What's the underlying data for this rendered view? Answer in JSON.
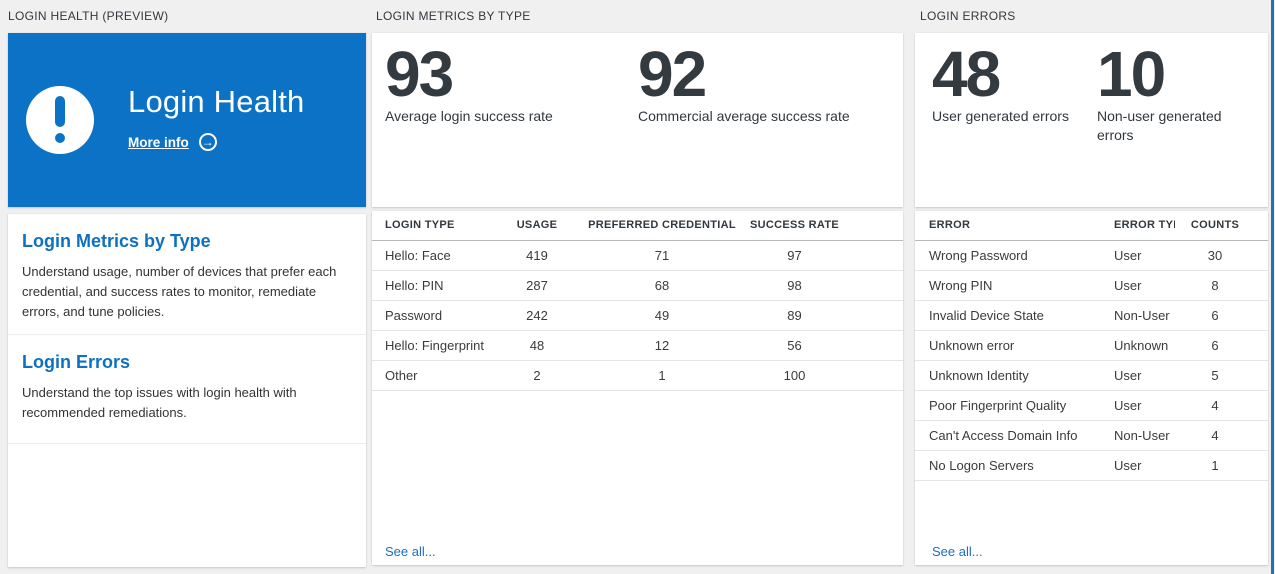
{
  "colors": {
    "card_blue": "#0c72c6",
    "heading_blue": "#0e70c0",
    "link_blue": "#1b6ec2",
    "stat_text": "#333a40",
    "edge_strip_blue": "#2272b8",
    "page_background": "#f0f0f0"
  },
  "icons": {
    "alert_exclamation": "!",
    "arrow_right": "→"
  },
  "login_health": {
    "section_title": "LOGIN HEALTH (PREVIEW)",
    "card_title": "Login Health",
    "more_info_label": "More info",
    "items": [
      {
        "title": "Login Metrics by Type",
        "description": "Understand usage, number of devices that prefer each credential, and success rates to monitor, remediate errors, and tune policies."
      },
      {
        "title": "Login Errors",
        "description": "Understand the top issues with login health with recommended remediations."
      }
    ]
  },
  "login_metrics": {
    "section_title": "LOGIN METRICS BY TYPE",
    "stats": [
      {
        "value": "93",
        "label": "Average login success rate"
      },
      {
        "value": "92",
        "label": "Commercial average success rate"
      }
    ],
    "table": {
      "columns": [
        "LOGIN TYPE",
        "USAGE",
        "PREFERRED CREDENTIAL",
        "SUCCESS RATE"
      ],
      "rows": [
        [
          "Hello: Face",
          "419",
          "71",
          "97"
        ],
        [
          "Hello: PIN",
          "287",
          "68",
          "98"
        ],
        [
          "Password",
          "242",
          "49",
          "89"
        ],
        [
          "Hello: Fingerprint",
          "48",
          "12",
          "56"
        ],
        [
          "Other",
          "2",
          "1",
          "100"
        ]
      ]
    },
    "see_all_label": "See all..."
  },
  "login_errors": {
    "section_title": "LOGIN ERRORS",
    "stats": [
      {
        "value": "48",
        "label": "User generated errors"
      },
      {
        "value": "10",
        "label": "Non-user generated errors"
      }
    ],
    "table": {
      "columns": [
        "ERROR",
        "ERROR TYPE",
        "COUNTS"
      ],
      "rows": [
        [
          "Wrong Password",
          "User",
          "30"
        ],
        [
          "Wrong PIN",
          "User",
          "8"
        ],
        [
          "Invalid Device State",
          "Non-User",
          "6"
        ],
        [
          "Unknown error",
          "Unknown",
          "6"
        ],
        [
          "Unknown Identity",
          "User",
          "5"
        ],
        [
          "Poor Fingerprint Quality",
          "User",
          "4"
        ],
        [
          "Can't Access Domain Info",
          "Non-User",
          "4"
        ],
        [
          "No Logon Servers",
          "User",
          "1"
        ]
      ]
    },
    "see_all_label": "See all..."
  }
}
